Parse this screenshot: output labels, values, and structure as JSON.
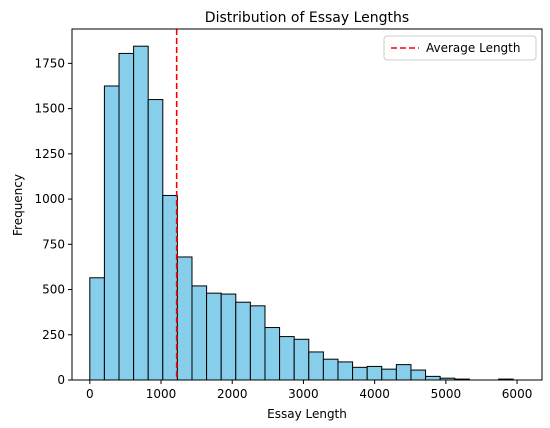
{
  "chart_data": {
    "type": "bar",
    "subtype": "histogram",
    "title": "Distribution of Essay Lengths",
    "xlabel": "Essay Length",
    "ylabel": "Frequency",
    "xlim": [
      -250,
      6350
    ],
    "ylim": [
      0,
      1940
    ],
    "xticks": [
      0,
      1000,
      2000,
      3000,
      4000,
      5000,
      6000
    ],
    "yticks": [
      0,
      250,
      500,
      750,
      1000,
      1250,
      1500,
      1750
    ],
    "bin_start": 0,
    "bin_width": 205,
    "values": [
      565,
      1625,
      1805,
      1845,
      1550,
      1020,
      680,
      520,
      480,
      475,
      430,
      410,
      290,
      240,
      225,
      155,
      115,
      100,
      70,
      75,
      60,
      85,
      55,
      20,
      10,
      5,
      0,
      0,
      5,
      0
    ],
    "bar_color": "#87CEEB",
    "edge_color": "#000000",
    "average_line": {
      "value": 1220,
      "label": "Average Length",
      "color": "#FF0000",
      "style": "dashed"
    },
    "legend_position": "top-right",
    "grid": false
  }
}
